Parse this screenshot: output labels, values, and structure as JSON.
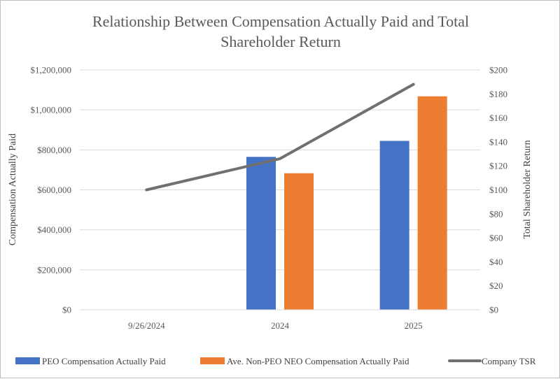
{
  "chart_data": {
    "type": "bar",
    "title_lines": [
      "Relationship Between Compensation Actually Paid and Total",
      "Shareholder Return"
    ],
    "categories": [
      "9/26/2024",
      "2024",
      "2025"
    ],
    "series": [
      {
        "name": "PEO Compensation Actually Paid",
        "type": "bar",
        "axis": "left",
        "color": "#4472C4",
        "values": [
          null,
          765000,
          845000
        ]
      },
      {
        "name": "Ave. Non-PEO NEO Compensation Actually Paid",
        "type": "bar",
        "axis": "left",
        "color": "#ED7D31",
        "values": [
          null,
          683000,
          1068000
        ]
      },
      {
        "name": "Company TSR",
        "type": "line",
        "axis": "right",
        "color": "#707070",
        "values": [
          100,
          126,
          188
        ]
      }
    ],
    "ylabel_left": "Compensation Actually Paid",
    "ylabel_right": "Total Shareholder Return",
    "ylim_left": [
      0,
      1200000
    ],
    "ylim_right": [
      0,
      200
    ],
    "yticks_left": [
      "$0",
      "$200,000",
      "$400,000",
      "$600,000",
      "$800,000",
      "$1,000,000",
      "$1,200,000"
    ],
    "yticks_right": [
      "$0",
      "$20",
      "$40",
      "$60",
      "$80",
      "$100",
      "$120",
      "$140",
      "$160",
      "$180",
      "$200"
    ],
    "grid": true,
    "legend_position": "bottom"
  }
}
